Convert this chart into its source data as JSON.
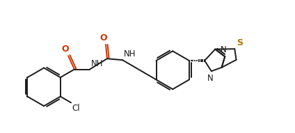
{
  "bg_color": "#ffffff",
  "line_color": "#1a1a1a",
  "color_O": "#cc3300",
  "color_N": "#1a1a1a",
  "color_S": "#aa7700",
  "color_Cl": "#1a1a1a",
  "lw": 1.4,
  "figsize": [
    4.24,
    1.91
  ],
  "dpi": 100,
  "xlim": [
    0,
    10.5
  ],
  "ylim": [
    0,
    4.5
  ]
}
